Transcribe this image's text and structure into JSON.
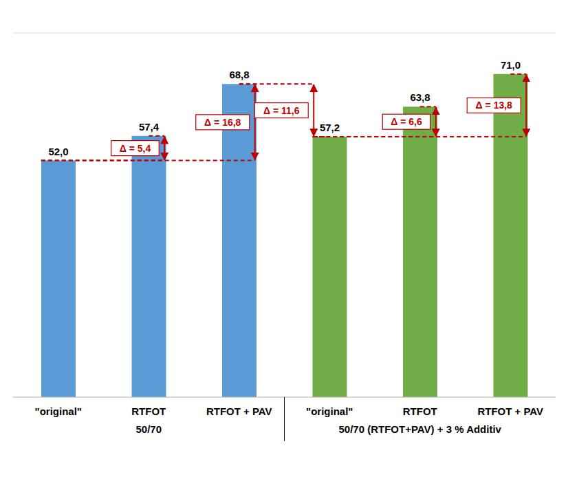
{
  "chart_data": {
    "type": "bar",
    "categories": [
      "\"original\"",
      "RTFOT",
      "RTFOT + PAV",
      "\"original\"",
      "RTFOT",
      "RTFOT + PAV"
    ],
    "series": [
      {
        "name": "50/70",
        "color": "#5b9bd5",
        "values": [
          52.0,
          57.4,
          68.8,
          null,
          null,
          null
        ],
        "value_labels": [
          "52,0",
          "57,4",
          "68,8",
          null,
          null,
          null
        ]
      },
      {
        "name": "50/70 (RTFOT+PAV) + 3 % Additiv",
        "color": "#70ad47",
        "values": [
          null,
          null,
          null,
          57.2,
          63.8,
          71.0
        ],
        "value_labels": [
          null,
          null,
          null,
          "57,2",
          "63,8",
          "71,0"
        ]
      }
    ],
    "ylim": [
      0,
      80
    ],
    "yticks": [
      0,
      10,
      20,
      30,
      40,
      50,
      60,
      70,
      80
    ],
    "grid": true,
    "data_labels": true,
    "tick_labels": "x",
    "annotations": [
      {
        "label": "Δ = 5,4",
        "from": 52.0,
        "to": 57.4
      },
      {
        "label": "Δ = 16,8",
        "from": 52.0,
        "to": 68.8
      },
      {
        "label": "Δ = 11,6",
        "from": 57.2,
        "to": 68.8
      },
      {
        "label": "Δ = 6,6",
        "from": 57.2,
        "to": 63.8
      },
      {
        "label": "Δ = 13,8",
        "from": 57.2,
        "to": 71.0
      }
    ]
  }
}
